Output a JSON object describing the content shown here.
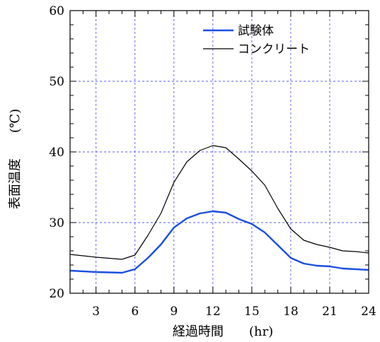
{
  "chart_data": {
    "type": "line",
    "xlabel": "経過時間　　(hr)",
    "ylabel": "表面温度　　(℃)",
    "xlim": [
      1,
      24
    ],
    "ylim": [
      20,
      60
    ],
    "x_ticks": [
      3,
      6,
      9,
      12,
      15,
      18,
      21,
      24
    ],
    "y_ticks": [
      20,
      30,
      40,
      50,
      60
    ],
    "x_tick_labels": [
      "3",
      "6",
      "9",
      "12",
      "15",
      "18",
      "21",
      "24"
    ],
    "y_tick_labels": [
      "20",
      "30",
      "40",
      "50",
      "60"
    ],
    "grid": true,
    "legend_position": "top-right",
    "series": [
      {
        "name": "試験体",
        "color": "#1a4fe0",
        "x": [
          1,
          3,
          5,
          6,
          7,
          8,
          9,
          10,
          11,
          12,
          13,
          14,
          15,
          16,
          17,
          18,
          19,
          20,
          21,
          22,
          23,
          24
        ],
        "y": [
          23.2,
          23.0,
          22.9,
          23.4,
          25.0,
          26.9,
          29.3,
          30.6,
          31.3,
          31.6,
          31.4,
          30.5,
          29.8,
          28.6,
          26.8,
          25.0,
          24.2,
          23.9,
          23.8,
          23.5,
          23.4,
          23.3
        ]
      },
      {
        "name": "コンクリート",
        "color": "#000000",
        "x": [
          1,
          3,
          5,
          6,
          7,
          8,
          9,
          10,
          11,
          12,
          13,
          14,
          15,
          16,
          17,
          18,
          19,
          20,
          21,
          22,
          23,
          24
        ],
        "y": [
          25.5,
          25.1,
          24.8,
          25.4,
          28.2,
          31.3,
          35.7,
          38.6,
          40.2,
          40.9,
          40.6,
          39.0,
          37.3,
          35.3,
          32.0,
          29.1,
          27.5,
          26.9,
          26.5,
          26.0,
          25.9,
          25.7
        ]
      }
    ]
  }
}
